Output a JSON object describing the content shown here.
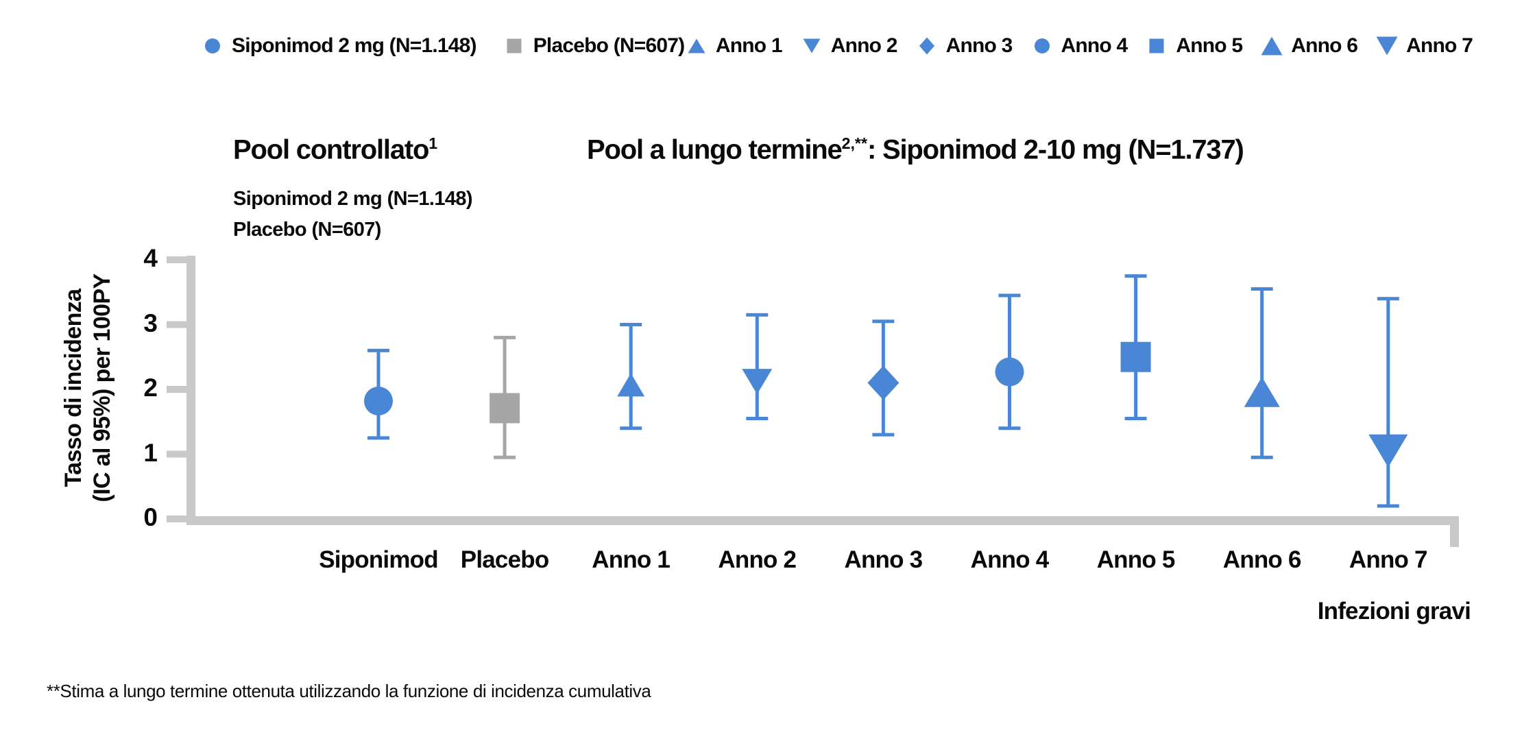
{
  "legend": {
    "pools": [
      {
        "label": "Siponimod 2 mg (N=1.148)",
        "marker": "circle",
        "color": "#4A86D6",
        "icon_name": "blue-circle-marker-icon"
      },
      {
        "label": "Placebo (N=607)",
        "marker": "square",
        "color": "#A6A6A6",
        "icon_name": "gray-square-marker-icon"
      }
    ],
    "years": [
      {
        "label": "Anno 1",
        "marker": "triangle-up",
        "color": "#4A86D6",
        "icon_name": "triangle-up-marker-icon"
      },
      {
        "label": "Anno 2",
        "marker": "triangle-down",
        "color": "#4A86D6",
        "icon_name": "triangle-down-marker-icon"
      },
      {
        "label": "Anno 3",
        "marker": "diamond",
        "color": "#4A86D6",
        "icon_name": "diamond-marker-icon"
      },
      {
        "label": "Anno 4",
        "marker": "circle",
        "color": "#4A86D6",
        "icon_name": "circle-marker-icon"
      },
      {
        "label": "Anno 5",
        "marker": "square",
        "color": "#4A86D6",
        "icon_name": "square-marker-icon"
      },
      {
        "label": "Anno 6",
        "marker": "triangle-up-large",
        "color": "#4A86D6",
        "icon_name": "triangle-up-large-marker-icon"
      },
      {
        "label": "Anno 7",
        "marker": "triangle-down-large",
        "color": "#4A86D6",
        "icon_name": "triangle-down-large-marker-icon"
      }
    ]
  },
  "headers": {
    "left_title": "Pool controllato",
    "left_title_sup": "1",
    "left_sub1": "Siponimod 2 mg (N=1.148)",
    "left_sub2": "Placebo (N=607)",
    "right_title_pre": "Pool a lungo termine",
    "right_title_sup": "2,**",
    "right_title_post": ": Siponimod 2-10 mg (N=1.737)"
  },
  "axes": {
    "y_label_line1": "Tasso di incidenza",
    "y_label_line2": "(IC al 95%) per 100PY",
    "x_caption": "Infezioni gravi"
  },
  "footnote": "**Stima a lungo termine ottenuta utilizzando la funzione di incidenza cumulativa",
  "colors": {
    "blue": "#4A86D6",
    "gray": "#A6A6A6",
    "axis": "#C9C9C9"
  },
  "chart_data": {
    "type": "scatter",
    "title": "Tasso di incidenza di infezioni gravi (IC al 95%) per 100PY",
    "ylabel": "Tasso di incidenza (IC al 95%) per 100PY",
    "xlabel": "Infezioni gravi",
    "ylim": [
      0,
      4
    ],
    "yticks": [
      0,
      1,
      2,
      3,
      4
    ],
    "grid": false,
    "legend_position": "top",
    "categories": [
      "Siponimod",
      "Placebo",
      "Anno 1",
      "Anno 2",
      "Anno 3",
      "Anno 4",
      "Anno 5",
      "Anno 6",
      "Anno 7"
    ],
    "series": [
      {
        "name": "Siponimod 2 mg (N=1.148)",
        "category": "Siponimod",
        "marker": "circle",
        "color": "#4A86D6",
        "value": 1.82,
        "ci_low": 1.25,
        "ci_high": 2.6
      },
      {
        "name": "Placebo (N=607)",
        "category": "Placebo",
        "marker": "square",
        "color": "#A6A6A6",
        "value": 1.71,
        "ci_low": 0.95,
        "ci_high": 2.8
      },
      {
        "name": "Anno 1",
        "category": "Anno 1",
        "marker": "triangle-up",
        "color": "#4A86D6",
        "value": 2.07,
        "ci_low": 1.4,
        "ci_high": 3.0
      },
      {
        "name": "Anno 2",
        "category": "Anno 2",
        "marker": "triangle-down",
        "color": "#4A86D6",
        "value": 2.12,
        "ci_low": 1.55,
        "ci_high": 3.15
      },
      {
        "name": "Anno 3",
        "category": "Anno 3",
        "marker": "diamond",
        "color": "#4A86D6",
        "value": 2.1,
        "ci_low": 1.3,
        "ci_high": 3.05
      },
      {
        "name": "Anno 4",
        "category": "Anno 4",
        "marker": "circle",
        "color": "#4A86D6",
        "value": 2.27,
        "ci_low": 1.4,
        "ci_high": 3.45
      },
      {
        "name": "Anno 5",
        "category": "Anno 5",
        "marker": "square",
        "color": "#4A86D6",
        "value": 2.5,
        "ci_low": 1.55,
        "ci_high": 3.75
      },
      {
        "name": "Anno 6",
        "category": "Anno 6",
        "marker": "triangle-up-large",
        "color": "#4A86D6",
        "value": 1.96,
        "ci_low": 0.95,
        "ci_high": 3.55
      },
      {
        "name": "Anno 7",
        "category": "Anno 7",
        "marker": "triangle-down-large",
        "color": "#4A86D6",
        "value": 1.05,
        "ci_low": 0.2,
        "ci_high": 3.4
      }
    ]
  }
}
